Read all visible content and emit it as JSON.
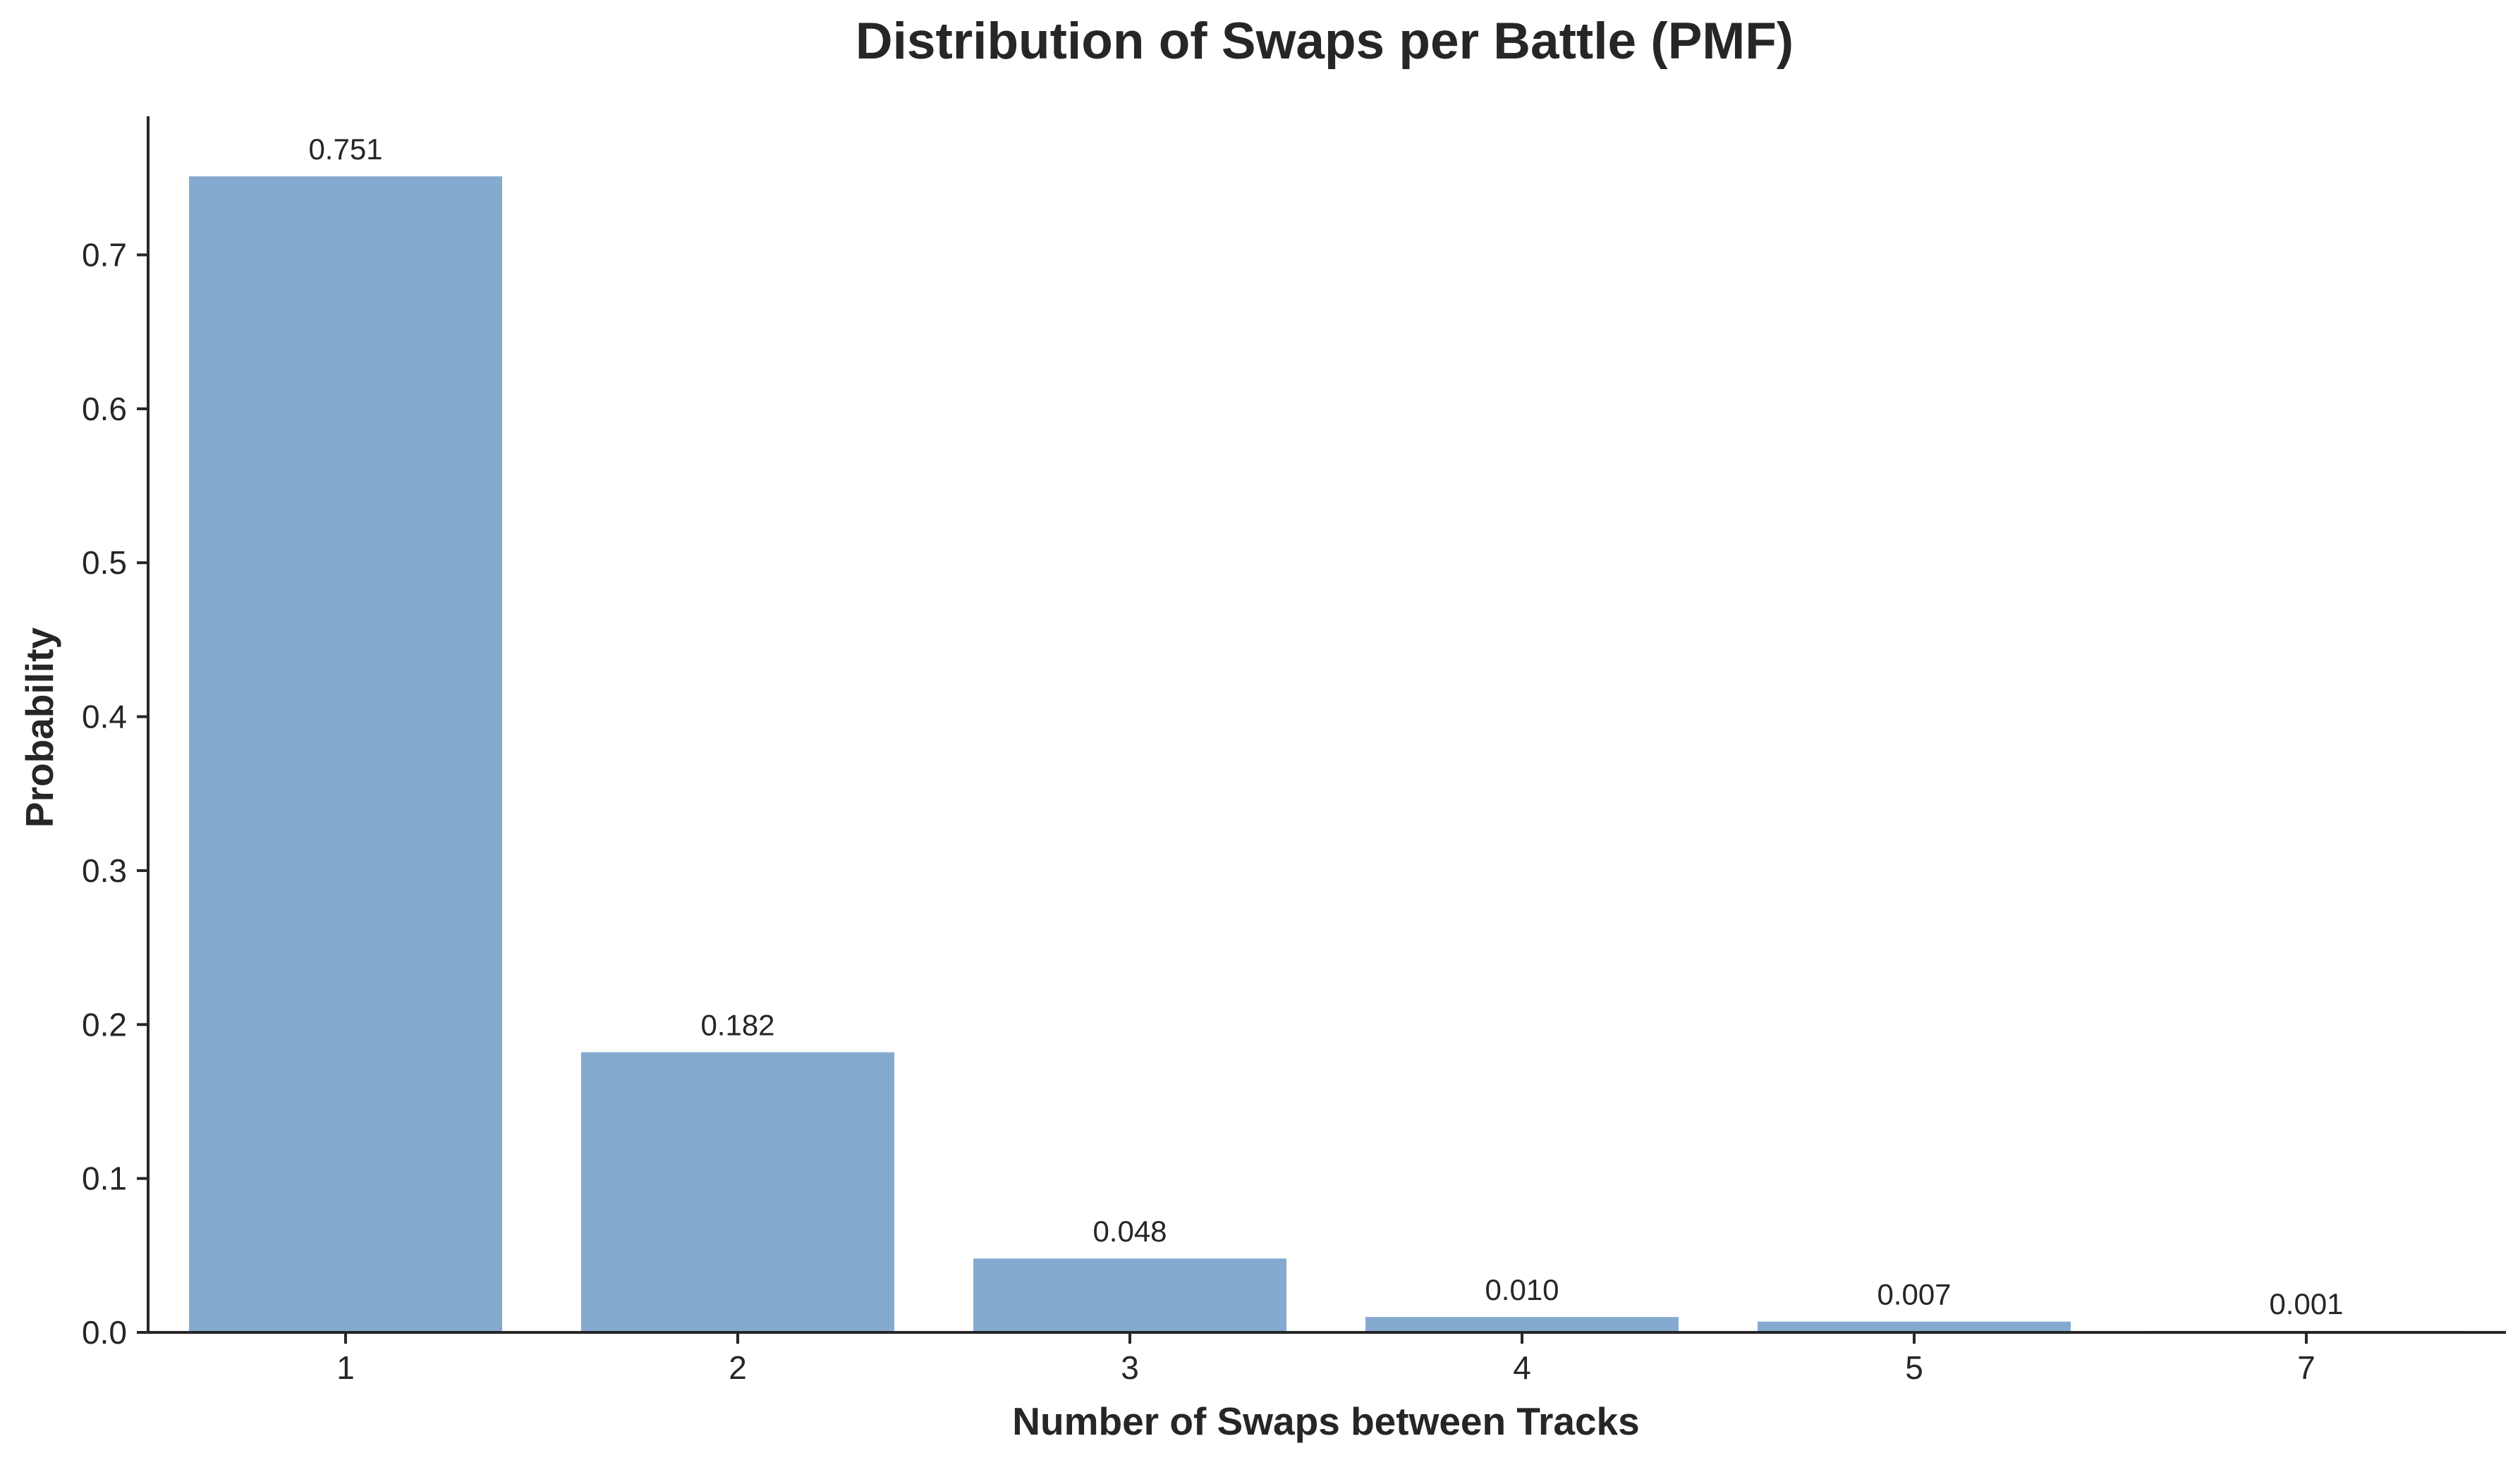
{
  "chart_data": {
    "type": "bar",
    "title": "Distribution of Swaps per Battle (PMF)",
    "xlabel": "Number of Swaps between Tracks",
    "ylabel": "Probability",
    "categories": [
      "1",
      "2",
      "3",
      "4",
      "5",
      "7"
    ],
    "values": [
      0.751,
      0.182,
      0.048,
      0.01,
      0.007,
      0.001
    ],
    "data_labels": [
      "0.751",
      "0.182",
      "0.048",
      "0.010",
      "0.007",
      "0.001"
    ],
    "ylim": [
      0,
      0.79
    ],
    "yticks": [
      0.0,
      0.1,
      0.2,
      0.3,
      0.4,
      0.5,
      0.6,
      0.7
    ],
    "ytick_labels": [
      "0.0",
      "0.1",
      "0.2",
      "0.3",
      "0.4",
      "0.5",
      "0.6",
      "0.7"
    ],
    "grid": false,
    "legend": false,
    "colors": {
      "bar": "#85aacf",
      "axis": "#262626",
      "text": "#262626"
    }
  }
}
